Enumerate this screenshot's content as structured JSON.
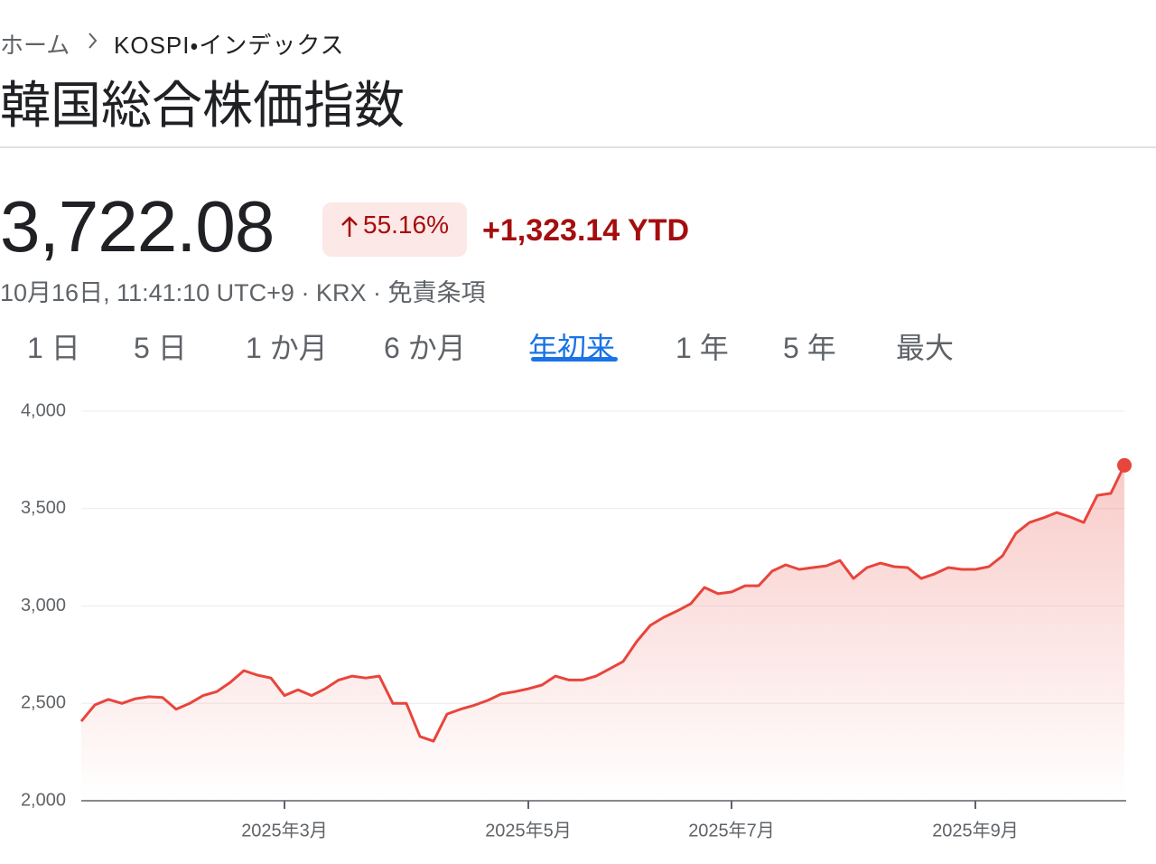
{
  "breadcrumb": {
    "home": "ホーム",
    "current": "KOSPI・インデックス"
  },
  "header": {
    "title": "韓国総合株価指数"
  },
  "quote": {
    "price": "3,722.08",
    "change_percent": "55.16%",
    "change_value": "+1,323.14 YTD",
    "meta": "10月16日, 11:41:10 UTC+9 · KRX · 免責条項"
  },
  "tabs": {
    "items": [
      "1 日",
      "5 日",
      "1 か月",
      "6 か月",
      "年初来",
      "1 年",
      "5 年",
      "最大"
    ],
    "active": 4
  },
  "chart_data": {
    "type": "line",
    "color": "#e8453c",
    "grid": true,
    "ylim": [
      2000,
      4000
    ],
    "yticks": [
      {
        "value": 2000,
        "label": "2,000"
      },
      {
        "value": 2500,
        "label": "2,500"
      },
      {
        "value": 3000,
        "label": "3,000"
      },
      {
        "value": 3500,
        "label": "3,500"
      },
      {
        "value": 4000,
        "label": "4,000"
      }
    ],
    "categories": [
      null,
      null,
      null,
      null,
      null,
      null,
      null,
      null,
      null,
      null,
      null,
      null,
      null,
      null,
      null,
      "2025年3月",
      null,
      null,
      null,
      null,
      null,
      null,
      null,
      null,
      null,
      null,
      null,
      null,
      null,
      null,
      null,
      null,
      null,
      "2025年5月",
      null,
      null,
      null,
      null,
      null,
      null,
      null,
      null,
      null,
      null,
      null,
      null,
      null,
      null,
      "2025年7月",
      null,
      null,
      null,
      null,
      null,
      null,
      null,
      null,
      null,
      null,
      null,
      null,
      null,
      null,
      null,
      null,
      null,
      "2025年9月",
      null,
      null,
      null,
      null,
      null,
      null,
      null,
      null,
      null,
      null,
      null
    ],
    "values": [
      2408,
      2492,
      2520,
      2500,
      2524,
      2534,
      2530,
      2470,
      2500,
      2540,
      2560,
      2608,
      2668,
      2645,
      2630,
      2540,
      2570,
      2540,
      2575,
      2620,
      2640,
      2630,
      2640,
      2500,
      2500,
      2330,
      2306,
      2445,
      2470,
      2490,
      2515,
      2548,
      2560,
      2575,
      2594,
      2640,
      2620,
      2620,
      2640,
      2677,
      2715,
      2817,
      2900,
      2942,
      2975,
      3012,
      3095,
      3063,
      3072,
      3104,
      3104,
      3179,
      3211,
      3188,
      3197,
      3206,
      3234,
      3141,
      3197,
      3220,
      3202,
      3197,
      3141,
      3165,
      3197,
      3188,
      3188,
      3202,
      3257,
      3374,
      3429,
      3452,
      3480,
      3457,
      3429,
      3568,
      3578,
      3722.08
    ]
  }
}
